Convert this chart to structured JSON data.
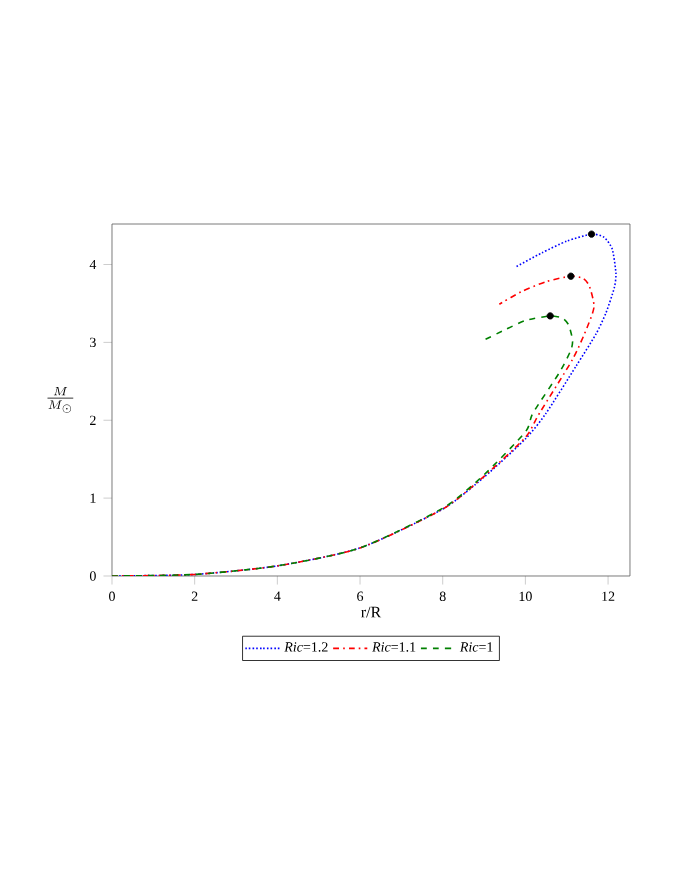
{
  "chart_data": {
    "type": "line",
    "xlabel": "r/R",
    "ylabel": "\\frac{M}{M_{\\odot}}",
    "xlim": [
      0,
      12.53
    ],
    "ylim": [
      0,
      4.52
    ],
    "xticks": [
      0,
      2,
      4,
      6,
      8,
      10,
      12
    ],
    "yticks": [
      0,
      1,
      2,
      3,
      4
    ],
    "grid": false,
    "legend": "bottom",
    "marker": "none",
    "series": [
      {
        "name": "*Ric*=1.2",
        "color": "#0000ff",
        "line_style": "dotted",
        "x": [
          0,
          2,
          4,
          6,
          8,
          9,
          10,
          10.5,
          11.22,
          11.7,
          11.95,
          12.15,
          12.19,
          12.1,
          11.9,
          11.6,
          11.0,
          10.4,
          9.77
        ],
        "values": [
          0,
          0.02,
          0.13,
          0.36,
          0.86,
          1.27,
          1.76,
          2.09,
          2.69,
          3.1,
          3.38,
          3.7,
          3.89,
          4.2,
          4.35,
          4.39,
          4.3,
          4.15,
          3.97
        ]
      },
      {
        "name": "*Ric*=1.1",
        "color": "#ff0000",
        "line_style": "dashdot",
        "x": [
          0,
          2,
          4,
          6,
          8,
          9,
          10,
          10.34,
          11.14,
          11.5,
          11.66,
          11.55,
          11.4,
          11.1,
          10.5,
          9.9,
          9.37
        ],
        "values": [
          0,
          0.02,
          0.13,
          0.36,
          0.86,
          1.28,
          1.78,
          2.09,
          2.78,
          3.2,
          3.46,
          3.72,
          3.82,
          3.85,
          3.78,
          3.65,
          3.49
        ]
      },
      {
        "name": "*Ric*=1",
        "color": "#008000",
        "line_style": "dashed",
        "x": [
          0,
          2,
          4,
          6,
          8,
          9,
          10,
          10.18,
          10.82,
          11.1,
          11.14,
          11.05,
          10.9,
          10.6,
          10.0,
          9.5,
          9.0
        ],
        "values": [
          0,
          0.02,
          0.13,
          0.36,
          0.87,
          1.3,
          1.85,
          2.09,
          2.61,
          2.9,
          3.03,
          3.22,
          3.31,
          3.34,
          3.28,
          3.16,
          3.03
        ]
      },
      {
        "type": "scatter",
        "marker": "circle",
        "color": "#000000",
        "x": [
          11.6,
          11.1,
          10.6
        ],
        "values": [
          4.39,
          3.85,
          3.34
        ]
      }
    ]
  }
}
